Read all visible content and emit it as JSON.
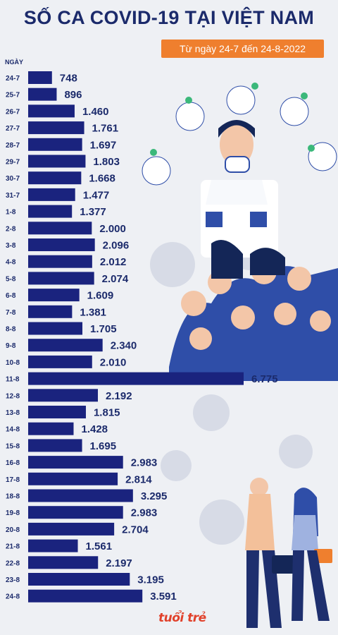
{
  "header": {
    "title": "SỐ CA COVID-19 TẠI VIỆT NAM",
    "subtitle": "Từ ngày 24-7 đến 24-8-2022"
  },
  "chart_data": {
    "type": "bar",
    "orientation": "horizontal",
    "title": "SỐ CA COVID-19 TẠI VIỆT NAM",
    "subtitle": "Từ ngày 24-7 đến 24-8-2022",
    "ylabel": "NGÀY",
    "xlabel": "",
    "categories": [
      "24-7",
      "25-7",
      "26-7",
      "27-7",
      "28-7",
      "29-7",
      "30-7",
      "31-7",
      "1-8",
      "2-8",
      "3-8",
      "4-8",
      "5-8",
      "6-8",
      "7-8",
      "8-8",
      "9-8",
      "10-8",
      "11-8",
      "12-8",
      "13-8",
      "14-8",
      "15-8",
      "16-8",
      "17-8",
      "18-8",
      "19-8",
      "20-8",
      "21-8",
      "22-8",
      "23-8",
      "24-8"
    ],
    "values": [
      748,
      896,
      1460,
      1761,
      1697,
      1803,
      1668,
      1477,
      1377,
      2000,
      2096,
      2012,
      2074,
      1609,
      1381,
      1705,
      2340,
      2010,
      6775,
      2192,
      1815,
      1428,
      1695,
      2983,
      2814,
      3295,
      2983,
      2704,
      1561,
      2197,
      3195,
      3591
    ],
    "value_labels": [
      "748",
      "896",
      "1.460",
      "1.761",
      "1.697",
      "1.803",
      "1.668",
      "1.477",
      "1.377",
      "2.000",
      "2.096",
      "2.012",
      "2.074",
      "1.609",
      "1.381",
      "1.705",
      "2.340",
      "2.010",
      "6.775",
      "2.192",
      "1.815",
      "1.428",
      "1.695",
      "2.983",
      "2.814",
      "3.295",
      "2.983",
      "2.704",
      "1.561",
      "2.197",
      "3.195",
      "3.591"
    ],
    "xlim": [
      0,
      6775
    ],
    "grid": false,
    "bar_color": "#1a237e"
  },
  "footer": {
    "logo": "tuổi trẻ"
  }
}
